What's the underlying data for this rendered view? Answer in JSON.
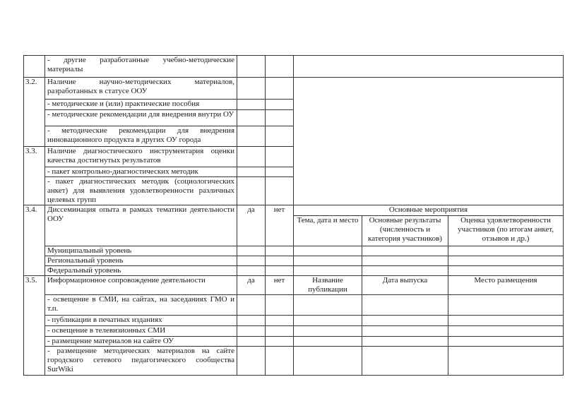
{
  "table": {
    "r1": {
      "text": "- другие разработанные учебно-методические материалы"
    },
    "s32": {
      "num": "3.2.",
      "title": "Наличие научно-методических материалов, разработанных в статусе ООУ",
      "items": [
        "- методические и (или) практические пособия",
        "- методические рекомендации для внедрения внутри ОУ",
        "- методические рекомендации для внедрения инновационного продукта в других ОУ города"
      ]
    },
    "s33": {
      "num": "3.3.",
      "title": "Наличие диагностического инструментария оценки качества достигнутых результатов",
      "items": [
        "- пакет контрольно-диагностических методик",
        "- пакет диагностических методик (социологических анкет) для выявления удовлетворенности различных целевых групп"
      ]
    },
    "s34": {
      "num": "3.4.",
      "title": "Диссеминация опыта в рамках тематики деятельности ООУ",
      "yes": "да",
      "no": "нет",
      "group_header": "Основные мероприятия",
      "columns": [
        "Тема, дата и место",
        "Основные результаты (численность и категория участников)",
        "Оценка удовлетворенности участников (по итогам анкет, отзывов и др.)"
      ],
      "levels": [
        "Муниципальный уровень",
        "Региональный уровень",
        "Федеральный уровень"
      ]
    },
    "s35": {
      "num": "3.5.",
      "title": "Информационное сопровождение деятельности",
      "yes": "да",
      "no": "нет",
      "columns": [
        "Название публикации",
        "Дата выпуска",
        "Место размещения"
      ],
      "items": [
        "- освещение в СМИ, на сайтах, на заседаниях ГМО и т.п.",
        "- публикации в печатных изданиях",
        "- освещение в телевизионных СМИ",
        "- размещение материалов на сайте ОУ",
        "- размещение методических материалов на сайте городского сетевого педагогического сообщества SurWiki"
      ]
    }
  }
}
